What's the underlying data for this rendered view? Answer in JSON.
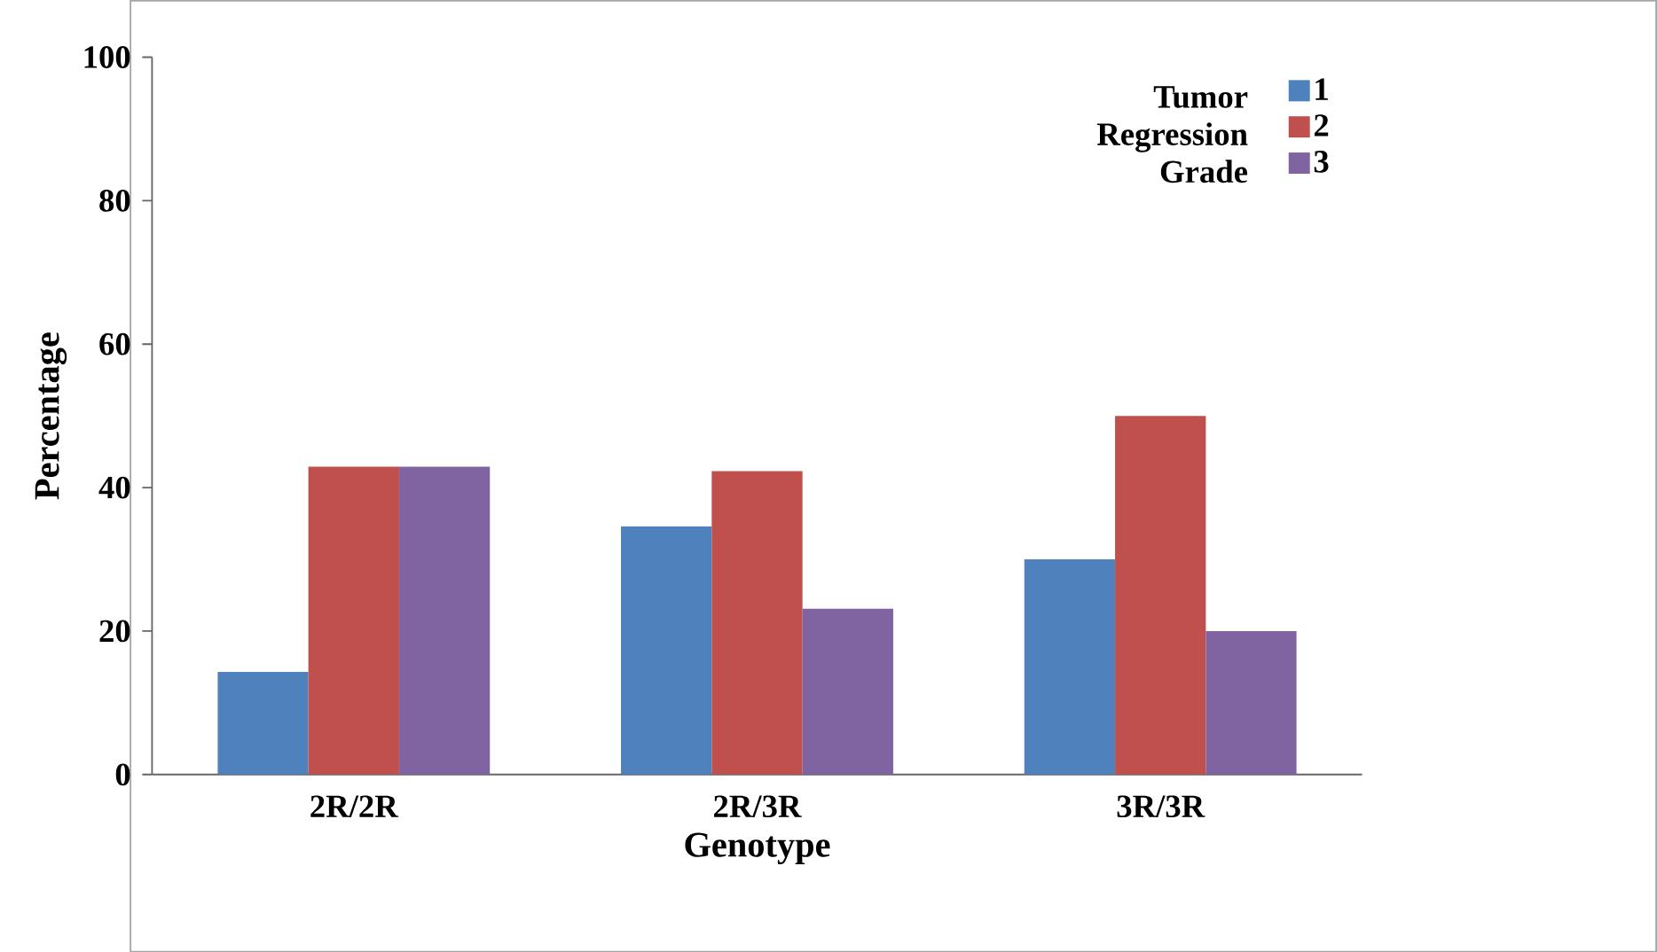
{
  "chart_data": {
    "type": "bar",
    "xlabel": "Genotype",
    "ylabel": "Percentage",
    "legend_title": "Tumor Regression Grade",
    "categories": [
      "2R/2R",
      "2R/3R",
      "3R/3R"
    ],
    "series": [
      {
        "name": "1",
        "color": "#4f81bd",
        "values": [
          14.3,
          34.6,
          30
        ]
      },
      {
        "name": "2",
        "color": "#c0504d",
        "values": [
          42.9,
          42.3,
          50
        ]
      },
      {
        "name": "3",
        "color": "#8064a2",
        "values": [
          42.9,
          23.1,
          20
        ]
      }
    ],
    "ylim": [
      0,
      100
    ],
    "yticks": [
      0,
      20,
      40,
      60,
      80,
      100
    ],
    "grid": false,
    "legend": "top right"
  }
}
